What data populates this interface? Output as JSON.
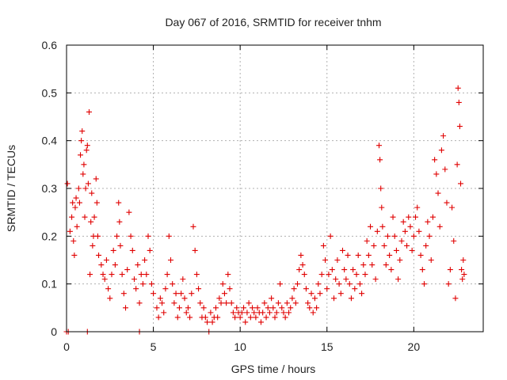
{
  "chart_data": {
    "type": "scatter",
    "title": "Day 067 of 2016, SRMTID for receiver tnhm",
    "xlabel": "GPS time / hours",
    "ylabel": "SRMTID / TECUs",
    "xlim": [
      0,
      24
    ],
    "ylim": [
      0,
      0.6
    ],
    "x_ticks": [
      0,
      5,
      10,
      15,
      20
    ],
    "x_tick_labels": [
      "0",
      "5",
      "10",
      "15",
      "20"
    ],
    "y_ticks": [
      0,
      0.1,
      0.2,
      0.3,
      0.4,
      0.5,
      0.6
    ],
    "y_tick_labels": [
      "0",
      "0.1",
      "0.2",
      "0.3",
      "0.4",
      "0.5",
      "0.6"
    ],
    "grid": true,
    "marker": "+",
    "series": [
      {
        "name": "SRMTID",
        "color": "#e00000",
        "points": [
          [
            0.0,
            0.0
          ],
          [
            0.05,
            0.31
          ],
          [
            0.1,
            0.0
          ],
          [
            0.2,
            0.21
          ],
          [
            0.3,
            0.24
          ],
          [
            0.35,
            0.27
          ],
          [
            0.4,
            0.19
          ],
          [
            0.45,
            0.16
          ],
          [
            0.5,
            0.26
          ],
          [
            0.55,
            0.28
          ],
          [
            0.6,
            0.22
          ],
          [
            0.7,
            0.3
          ],
          [
            0.75,
            0.27
          ],
          [
            0.8,
            0.37
          ],
          [
            0.85,
            0.4
          ],
          [
            0.9,
            0.42
          ],
          [
            0.95,
            0.33
          ],
          [
            1.0,
            0.35
          ],
          [
            1.05,
            0.24
          ],
          [
            1.1,
            0.3
          ],
          [
            1.15,
            0.38
          ],
          [
            1.2,
            0.39
          ],
          [
            1.25,
            0.31
          ],
          [
            1.3,
            0.46
          ],
          [
            1.35,
            0.12
          ],
          [
            1.4,
            0.23
          ],
          [
            1.45,
            0.29
          ],
          [
            1.5,
            0.18
          ],
          [
            1.55,
            0.2
          ],
          [
            1.6,
            0.24
          ],
          [
            1.7,
            0.32
          ],
          [
            1.75,
            0.27
          ],
          [
            1.8,
            0.2
          ],
          [
            1.85,
            0.16
          ],
          [
            1.2,
            0.0
          ],
          [
            2.0,
            0.14
          ],
          [
            2.1,
            0.12
          ],
          [
            2.2,
            0.11
          ],
          [
            2.3,
            0.15
          ],
          [
            2.4,
            0.09
          ],
          [
            2.5,
            0.07
          ],
          [
            2.6,
            0.12
          ],
          [
            2.7,
            0.17
          ],
          [
            2.8,
            0.14
          ],
          [
            2.9,
            0.2
          ],
          [
            3.0,
            0.27
          ],
          [
            3.05,
            0.23
          ],
          [
            3.1,
            0.18
          ],
          [
            3.2,
            0.12
          ],
          [
            3.3,
            0.08
          ],
          [
            3.4,
            0.05
          ],
          [
            3.5,
            0.13
          ],
          [
            3.6,
            0.25
          ],
          [
            3.7,
            0.2
          ],
          [
            3.8,
            0.17
          ],
          [
            3.9,
            0.11
          ],
          [
            4.0,
            0.09
          ],
          [
            4.1,
            0.14
          ],
          [
            4.2,
            0.06
          ],
          [
            4.3,
            0.12
          ],
          [
            4.4,
            0.1
          ],
          [
            4.5,
            0.15
          ],
          [
            4.6,
            0.12
          ],
          [
            4.7,
            0.2
          ],
          [
            4.8,
            0.17
          ],
          [
            4.9,
            0.1
          ],
          [
            5.0,
            0.08
          ],
          [
            4.2,
            0.0
          ],
          [
            5.2,
            0.05
          ],
          [
            5.3,
            0.03
          ],
          [
            5.4,
            0.07
          ],
          [
            5.5,
            0.06
          ],
          [
            5.6,
            0.04
          ],
          [
            5.7,
            0.09
          ],
          [
            5.8,
            0.12
          ],
          [
            5.9,
            0.2
          ],
          [
            6.0,
            0.15
          ],
          [
            6.1,
            0.1
          ],
          [
            6.2,
            0.06
          ],
          [
            6.3,
            0.08
          ],
          [
            6.4,
            0.03
          ],
          [
            6.5,
            0.05
          ],
          [
            6.6,
            0.08
          ],
          [
            6.7,
            0.11
          ],
          [
            6.8,
            0.07
          ],
          [
            6.9,
            0.04
          ],
          [
            7.0,
            0.05
          ],
          [
            7.1,
            0.03
          ],
          [
            7.2,
            0.08
          ],
          [
            7.3,
            0.22
          ],
          [
            7.4,
            0.17
          ],
          [
            7.5,
            0.12
          ],
          [
            7.6,
            0.09
          ],
          [
            7.7,
            0.06
          ],
          [
            7.8,
            0.03
          ],
          [
            7.9,
            0.05
          ],
          [
            8.0,
            0.03
          ],
          [
            8.1,
            0.02
          ],
          [
            8.2,
            0.0
          ],
          [
            8.3,
            0.04
          ],
          [
            8.4,
            0.02
          ],
          [
            8.5,
            0.03
          ],
          [
            8.6,
            0.05
          ],
          [
            8.7,
            0.03
          ],
          [
            8.8,
            0.07
          ],
          [
            8.9,
            0.06
          ],
          [
            9.0,
            0.1
          ],
          [
            9.1,
            0.08
          ],
          [
            9.2,
            0.06
          ],
          [
            9.3,
            0.12
          ],
          [
            9.4,
            0.09
          ],
          [
            9.5,
            0.06
          ],
          [
            9.6,
            0.04
          ],
          [
            9.7,
            0.03
          ],
          [
            9.8,
            0.05
          ],
          [
            9.9,
            0.04
          ],
          [
            10.0,
            0.03
          ],
          [
            10.1,
            0.04
          ],
          [
            10.2,
            0.05
          ],
          [
            10.3,
            0.02
          ],
          [
            10.4,
            0.04
          ],
          [
            10.5,
            0.06
          ],
          [
            10.6,
            0.03
          ],
          [
            10.7,
            0.05
          ],
          [
            10.8,
            0.04
          ],
          [
            10.9,
            0.03
          ],
          [
            11.0,
            0.05
          ],
          [
            11.1,
            0.04
          ],
          [
            11.2,
            0.02
          ],
          [
            11.3,
            0.04
          ],
          [
            11.4,
            0.06
          ],
          [
            11.5,
            0.03
          ],
          [
            11.6,
            0.05
          ],
          [
            11.7,
            0.04
          ],
          [
            11.8,
            0.07
          ],
          [
            11.9,
            0.05
          ],
          [
            12.0,
            0.03
          ],
          [
            12.1,
            0.04
          ],
          [
            12.2,
            0.06
          ],
          [
            12.3,
            0.1
          ],
          [
            12.4,
            0.05
          ],
          [
            12.5,
            0.04
          ],
          [
            12.6,
            0.03
          ],
          [
            12.7,
            0.06
          ],
          [
            12.8,
            0.04
          ],
          [
            12.9,
            0.05
          ],
          [
            13.0,
            0.07
          ],
          [
            13.1,
            0.09
          ],
          [
            13.2,
            0.06
          ],
          [
            13.3,
            0.1
          ],
          [
            13.4,
            0.13
          ],
          [
            13.5,
            0.16
          ],
          [
            13.6,
            0.14
          ],
          [
            13.7,
            0.12
          ],
          [
            13.8,
            0.09
          ],
          [
            13.9,
            0.06
          ],
          [
            14.0,
            0.05
          ],
          [
            14.1,
            0.08
          ],
          [
            14.2,
            0.04
          ],
          [
            14.3,
            0.07
          ],
          [
            14.4,
            0.05
          ],
          [
            14.5,
            0.1
          ],
          [
            14.6,
            0.08
          ],
          [
            14.7,
            0.12
          ],
          [
            14.8,
            0.18
          ],
          [
            14.9,
            0.15
          ],
          [
            15.0,
            0.09
          ],
          [
            15.1,
            0.12
          ],
          [
            15.2,
            0.2
          ],
          [
            15.3,
            0.13
          ],
          [
            15.4,
            0.07
          ],
          [
            15.5,
            0.11
          ],
          [
            15.6,
            0.15
          ],
          [
            15.7,
            0.1
          ],
          [
            15.8,
            0.08
          ],
          [
            15.9,
            0.17
          ],
          [
            16.0,
            0.13
          ],
          [
            16.1,
            0.11
          ],
          [
            16.2,
            0.16
          ],
          [
            16.3,
            0.1
          ],
          [
            16.4,
            0.07
          ],
          [
            16.5,
            0.13
          ],
          [
            16.6,
            0.09
          ],
          [
            16.7,
            0.12
          ],
          [
            16.8,
            0.16
          ],
          [
            16.9,
            0.1
          ],
          [
            17.0,
            0.08
          ],
          [
            17.1,
            0.14
          ],
          [
            17.2,
            0.12
          ],
          [
            17.3,
            0.19
          ],
          [
            17.4,
            0.16
          ],
          [
            17.5,
            0.22
          ],
          [
            17.6,
            0.14
          ],
          [
            17.7,
            0.18
          ],
          [
            17.8,
            0.11
          ],
          [
            17.9,
            0.21
          ],
          [
            18.0,
            0.39
          ],
          [
            18.05,
            0.36
          ],
          [
            18.1,
            0.3
          ],
          [
            18.15,
            0.26
          ],
          [
            18.2,
            0.22
          ],
          [
            18.3,
            0.18
          ],
          [
            18.4,
            0.14
          ],
          [
            18.5,
            0.2
          ],
          [
            18.6,
            0.16
          ],
          [
            18.7,
            0.13
          ],
          [
            18.8,
            0.24
          ],
          [
            18.9,
            0.2
          ],
          [
            19.0,
            0.17
          ],
          [
            19.1,
            0.11
          ],
          [
            19.2,
            0.15
          ],
          [
            19.3,
            0.19
          ],
          [
            19.4,
            0.23
          ],
          [
            19.5,
            0.21
          ],
          [
            19.6,
            0.18
          ],
          [
            19.7,
            0.24
          ],
          [
            19.8,
            0.22
          ],
          [
            19.9,
            0.17
          ],
          [
            20.0,
            0.2
          ],
          [
            20.1,
            0.24
          ],
          [
            20.2,
            0.26
          ],
          [
            20.3,
            0.21
          ],
          [
            20.4,
            0.16
          ],
          [
            20.5,
            0.13
          ],
          [
            20.6,
            0.1
          ],
          [
            20.7,
            0.18
          ],
          [
            20.8,
            0.23
          ],
          [
            20.9,
            0.2
          ],
          [
            21.0,
            0.15
          ],
          [
            21.1,
            0.24
          ],
          [
            21.2,
            0.36
          ],
          [
            21.3,
            0.33
          ],
          [
            21.4,
            0.29
          ],
          [
            21.5,
            0.22
          ],
          [
            21.6,
            0.38
          ],
          [
            21.7,
            0.41
          ],
          [
            21.8,
            0.34
          ],
          [
            21.9,
            0.27
          ],
          [
            22.0,
            0.1
          ],
          [
            22.1,
            0.13
          ],
          [
            22.2,
            0.26
          ],
          [
            22.3,
            0.19
          ],
          [
            22.4,
            0.07
          ],
          [
            22.5,
            0.35
          ],
          [
            22.55,
            0.51
          ],
          [
            22.6,
            0.48
          ],
          [
            22.65,
            0.43
          ],
          [
            22.7,
            0.31
          ],
          [
            22.75,
            0.13
          ],
          [
            22.8,
            0.11
          ],
          [
            22.85,
            0.15
          ],
          [
            22.9,
            0.12
          ]
        ]
      }
    ]
  }
}
